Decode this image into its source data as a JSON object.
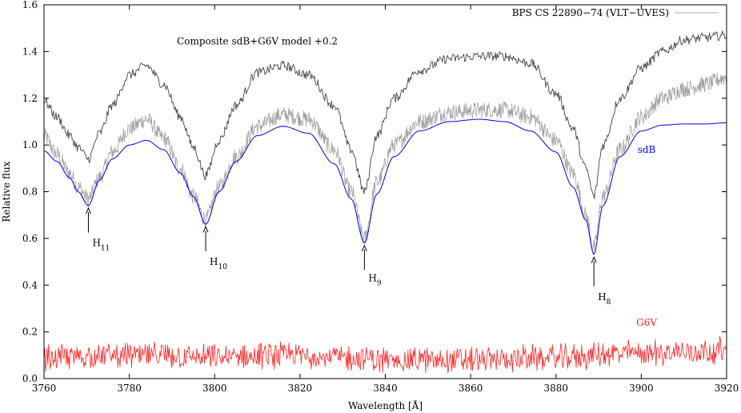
{
  "chart_data": {
    "type": "line",
    "xlabel": "Wavelength [Å]",
    "ylabel": "Relative flux",
    "xlim": [
      3760,
      3920
    ],
    "ylim": [
      0.0,
      1.6
    ],
    "xticks": [
      3760,
      3780,
      3800,
      3820,
      3840,
      3860,
      3880,
      3900,
      3920
    ],
    "yticks": [
      0.0,
      0.2,
      0.4,
      0.6,
      0.8,
      1.0,
      1.2,
      1.4,
      1.6
    ],
    "ytick_labels": [
      "0.0",
      "0.2",
      "0.4",
      "0.6",
      "0.8",
      "1.0",
      "1.2",
      "1.4",
      "1.6"
    ],
    "legend": {
      "label": "BPS CS 22890−74 (VLT−UVES)",
      "color": "#b0b0b0",
      "position": "top-right"
    },
    "composite_label": "Composite sdB+G6V model +0.2",
    "series": [
      {
        "name": "BPS CS 22890−74 (VLT−UVES)",
        "color": "#a0a0a0",
        "style": "noisy",
        "x": [
          3760,
          3763,
          3766,
          3768,
          3770.4,
          3773,
          3776,
          3780,
          3784,
          3788,
          3792,
          3795,
          3797.9,
          3801,
          3805,
          3810,
          3816,
          3822,
          3828,
          3832,
          3835.1,
          3838,
          3842,
          3848,
          3855,
          3862,
          3868,
          3874,
          3880,
          3884,
          3887,
          3888.9,
          3891,
          3895,
          3900,
          3905,
          3910,
          3915,
          3920
        ],
        "y": [
          1.04,
          0.96,
          0.88,
          0.82,
          0.77,
          0.86,
          0.97,
          1.07,
          1.11,
          1.03,
          0.9,
          0.78,
          0.68,
          0.82,
          0.95,
          1.08,
          1.13,
          1.11,
          0.98,
          0.8,
          0.6,
          0.84,
          1.0,
          1.1,
          1.14,
          1.15,
          1.15,
          1.12,
          1.02,
          0.88,
          0.7,
          0.56,
          0.78,
          0.98,
          1.12,
          1.2,
          1.24,
          1.26,
          1.29
        ]
      },
      {
        "name": "Composite sdB+G6V model +0.2",
        "color": "#444444",
        "style": "noisy",
        "x": [
          3760,
          3763,
          3766,
          3768,
          3770.4,
          3773,
          3776,
          3780,
          3784,
          3788,
          3792,
          3795,
          3797.9,
          3801,
          3805,
          3810,
          3816,
          3822,
          3828,
          3832,
          3835.1,
          3838,
          3842,
          3848,
          3855,
          3862,
          3868,
          3874,
          3880,
          3884,
          3887,
          3888.9,
          3891,
          3895,
          3900,
          3905,
          3910,
          3915,
          3920
        ],
        "y": [
          1.19,
          1.12,
          1.04,
          0.99,
          0.94,
          1.05,
          1.17,
          1.3,
          1.34,
          1.26,
          1.12,
          0.99,
          0.87,
          1.02,
          1.17,
          1.31,
          1.34,
          1.3,
          1.17,
          0.98,
          0.8,
          1.04,
          1.2,
          1.32,
          1.37,
          1.38,
          1.38,
          1.35,
          1.22,
          1.07,
          0.9,
          0.78,
          1.0,
          1.2,
          1.33,
          1.4,
          1.45,
          1.46,
          1.47
        ]
      },
      {
        "name": "sdB",
        "color": "#0000ee",
        "style": "smooth",
        "x": [
          3760,
          3763,
          3766,
          3768,
          3770.4,
          3773,
          3776,
          3780,
          3784,
          3788,
          3792,
          3795,
          3797.9,
          3801,
          3805,
          3810,
          3816,
          3822,
          3828,
          3832,
          3835.1,
          3838,
          3842,
          3848,
          3855,
          3862,
          3868,
          3874,
          3880,
          3884,
          3887,
          3888.9,
          3891,
          3895,
          3900,
          3905,
          3910,
          3915,
          3920
        ],
        "y": [
          0.975,
          0.93,
          0.86,
          0.8,
          0.74,
          0.85,
          0.94,
          1.0,
          1.02,
          0.98,
          0.88,
          0.78,
          0.66,
          0.8,
          0.93,
          1.04,
          1.08,
          1.05,
          0.92,
          0.77,
          0.58,
          0.79,
          0.95,
          1.06,
          1.1,
          1.11,
          1.1,
          1.06,
          0.97,
          0.82,
          0.68,
          0.53,
          0.74,
          0.95,
          1.06,
          1.085,
          1.09,
          1.09,
          1.095
        ]
      },
      {
        "name": "G6V",
        "color": "#ff2020",
        "style": "noisy",
        "x": [
          3760,
          3780,
          3800,
          3820,
          3840,
          3860,
          3880,
          3900,
          3920
        ],
        "y": [
          0.09,
          0.1,
          0.09,
          0.1,
          0.08,
          0.08,
          0.09,
          0.11,
          0.12
        ]
      }
    ],
    "annotations": [
      {
        "label": "sdB",
        "color": "#0000ee",
        "x": 3890,
        "y": 0.98
      },
      {
        "label": "G6V",
        "color": "#ff2020",
        "x": 3890,
        "y": 0.24
      }
    ],
    "line_markers": [
      {
        "name": "H",
        "sub": "11",
        "x": 3770.4,
        "y_top": 0.74,
        "y_bottom": 0.625,
        "label_y": 0.58
      },
      {
        "name": "H",
        "sub": "10",
        "x": 3797.9,
        "y_top": 0.66,
        "y_bottom": 0.545,
        "label_y": 0.5
      },
      {
        "name": "H",
        "sub": "9",
        "x": 3835.1,
        "y_top": 0.58,
        "y_bottom": 0.465,
        "label_y": 0.43
      },
      {
        "name": "H",
        "sub": "8",
        "x": 3888.9,
        "y_top": 0.53,
        "y_bottom": 0.395,
        "label_y": 0.35
      }
    ]
  }
}
